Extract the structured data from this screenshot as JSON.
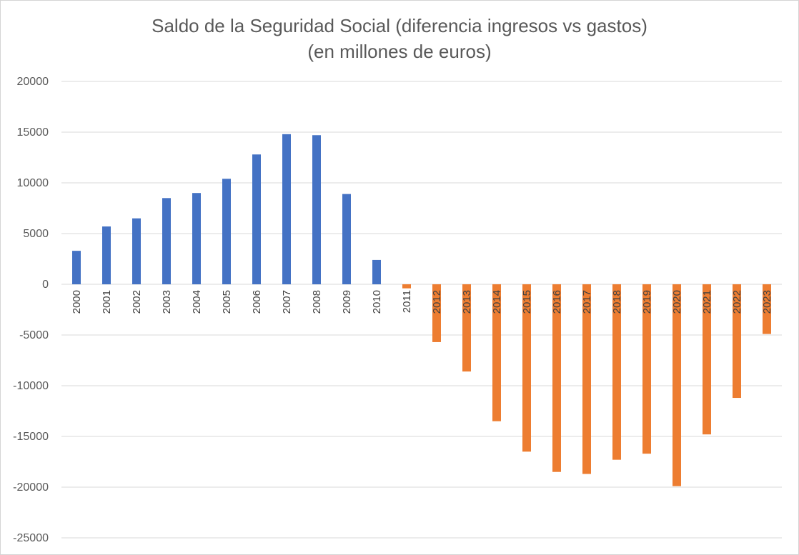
{
  "chart_data": {
    "type": "bar",
    "title": "Saldo de la Seguridad Social (diferencia ingresos vs gastos)",
    "subtitle": "(en millones de euros)",
    "xlabel": "",
    "ylabel": "",
    "ylim": [
      -25000,
      20000
    ],
    "ytick_step": 5000,
    "grid": true,
    "legend": "none",
    "categories": [
      "2000",
      "2001",
      "2002",
      "2003",
      "2004",
      "2005",
      "2006",
      "2007",
      "2008",
      "2009",
      "2010",
      "2011",
      "2012",
      "2013",
      "2014",
      "2015",
      "2016",
      "2017",
      "2018",
      "2019",
      "2020",
      "2021",
      "2022",
      "2023"
    ],
    "values": [
      3300,
      5700,
      6500,
      8500,
      9000,
      10400,
      12800,
      14800,
      14700,
      8900,
      2400,
      -400,
      -5700,
      -8600,
      -13500,
      -16500,
      -18500,
      -18700,
      -17300,
      -16700,
      -19900,
      -14800,
      -11200,
      -4900
    ],
    "colors": {
      "positive": "#4472c4",
      "negative": "#ed7d31",
      "grid": "#d9d9d9",
      "tick": "#595959"
    }
  }
}
